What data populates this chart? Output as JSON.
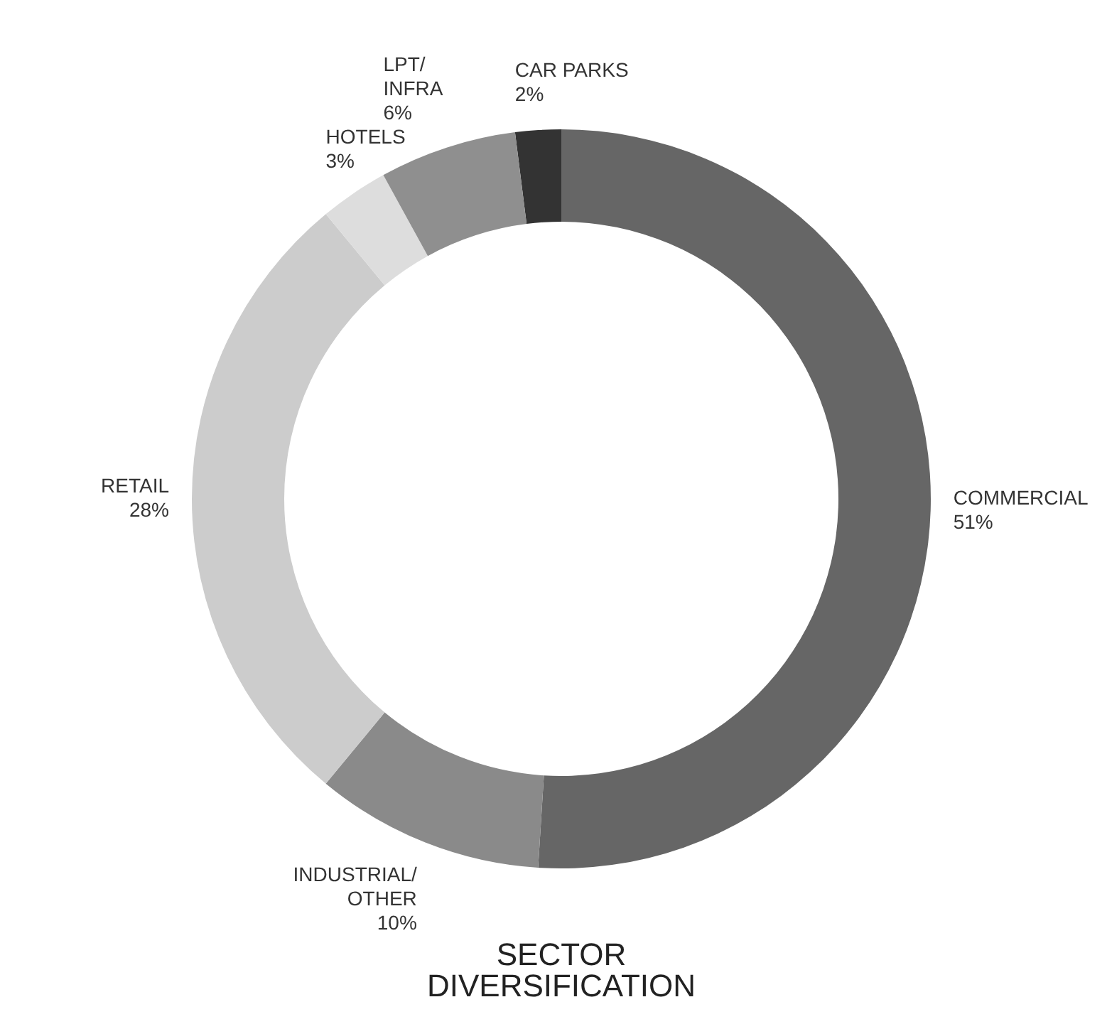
{
  "chart_data": {
    "type": "donut",
    "title": "SECTOR DIVERSIFICATION",
    "categories": [
      "CAR PARKS",
      "COMMERCIAL",
      "INDUSTRIAL/OTHER",
      "RETAIL",
      "HOTELS",
      "LPT/INFRA"
    ],
    "values": [
      2,
      51,
      10,
      28,
      3,
      6
    ],
    "value_labels": [
      "2%",
      "51%",
      "10%",
      "28%",
      "3%",
      "6%"
    ],
    "colors": [
      "#333333",
      "#666666",
      "#8a8a8a",
      "#cccccc",
      "#dddddd",
      "#8f8f8f"
    ],
    "legend": false
  }
}
